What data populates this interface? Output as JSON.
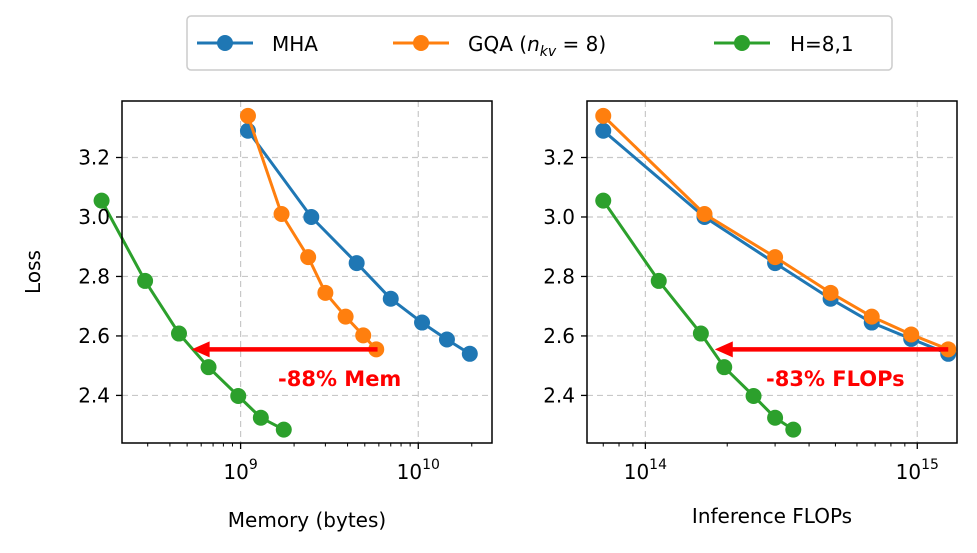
{
  "chart_data": [
    {
      "type": "line",
      "xscale": "log",
      "xlabel": "Memory (bytes)",
      "ylabel": "Loss",
      "ylim": [
        2.24,
        3.39
      ],
      "xlim": [
        215000000.0,
        26000000000.0
      ],
      "grid": true,
      "yticks": [
        "2.4",
        "2.6",
        "2.8",
        "3.0",
        "3.2"
      ],
      "xticks": [
        {
          "base": "10",
          "exp": "9"
        },
        {
          "base": "10",
          "exp": "10"
        }
      ],
      "series": [
        {
          "name": "MHA",
          "color": "#1f77b4",
          "points": [
            [
              1100000000.0,
              3.29
            ],
            [
              2500000000.0,
              3.0
            ],
            [
              4500000000.0,
              2.845
            ],
            [
              7000000000.0,
              2.725
            ],
            [
              10500000000.0,
              2.645
            ],
            [
              14500000000.0,
              2.588
            ],
            [
              19500000000.0,
              2.54
            ]
          ]
        },
        {
          "name": "GQA (n_kv = 8)",
          "color": "#ff7f0e",
          "points": [
            [
              1100000000.0,
              3.34
            ],
            [
              1700000000.0,
              3.01
            ],
            [
              2400000000.0,
              2.865
            ],
            [
              3000000000.0,
              2.745
            ],
            [
              3900000000.0,
              2.665
            ],
            [
              4900000000.0,
              2.602
            ],
            [
              5800000000.0,
              2.555
            ]
          ]
        },
        {
          "name": "H=8,1",
          "color": "#2ca02c",
          "points": [
            [
              165000000.0,
              3.055
            ],
            [
              290000000.0,
              2.785
            ],
            [
              450000000.0,
              2.608
            ],
            [
              660000000.0,
              2.495
            ],
            [
              970000000.0,
              2.398
            ],
            [
              1300000000.0,
              2.325
            ],
            [
              1750000000.0,
              2.285
            ]
          ]
        }
      ],
      "arrow": {
        "from": [
          5900000000.0,
          2.555
        ],
        "to": [
          530000000.0,
          2.555
        ],
        "color": "#ff0000"
      },
      "annotation": "-88% Mem"
    },
    {
      "type": "line",
      "xscale": "log",
      "xlabel": "Inference FLOPs",
      "ylabel": "",
      "ylim": [
        2.24,
        3.39
      ],
      "xlim": [
        61000000000000.0,
        1400000000000000.0
      ],
      "grid": true,
      "yticks": [
        "2.4",
        "2.6",
        "2.8",
        "3.0",
        "3.2"
      ],
      "xticks": [
        {
          "base": "10",
          "exp": "14"
        },
        {
          "base": "10",
          "exp": "15"
        }
      ],
      "series": [
        {
          "name": "MHA",
          "color": "#1f77b4",
          "points": [
            [
              70000000000000.0,
              3.29
            ],
            [
              165000000000000.0,
              3.0
            ],
            [
              300000000000000.0,
              2.845
            ],
            [
              480000000000000.0,
              2.725
            ],
            [
              680000000000000.0,
              2.645
            ],
            [
              950000000000000.0,
              2.59
            ],
            [
              1300000000000000.0,
              2.54
            ]
          ]
        },
        {
          "name": "GQA (n_kv = 8)",
          "color": "#ff7f0e",
          "points": [
            [
              70000000000000.0,
              3.34
            ],
            [
              165000000000000.0,
              3.01
            ],
            [
              300000000000000.0,
              2.865
            ],
            [
              480000000000000.0,
              2.745
            ],
            [
              680000000000000.0,
              2.665
            ],
            [
              950000000000000.0,
              2.605
            ],
            [
              1300000000000000.0,
              2.555
            ]
          ]
        },
        {
          "name": "H=8,1",
          "color": "#2ca02c",
          "points": [
            [
              70000000000000.0,
              3.055
            ],
            [
              112000000000000.0,
              2.785
            ],
            [
              160000000000000.0,
              2.608
            ],
            [
              195000000000000.0,
              2.495
            ],
            [
              250000000000000.0,
              2.398
            ],
            [
              300000000000000.0,
              2.325
            ],
            [
              350000000000000.0,
              2.285
            ]
          ]
        }
      ],
      "arrow": {
        "from": [
          1300000000000000.0,
          2.555
        ],
        "to": [
          180000000000000.0,
          2.555
        ],
        "color": "#ff0000"
      },
      "annotation": "-83% FLOPs"
    }
  ],
  "legend": {
    "position": "top-center",
    "entries": [
      {
        "label": "MHA",
        "color": "#1f77b4"
      },
      {
        "label_main": "GQA (",
        "label_var": "n",
        "label_sub": "kv",
        "label_rest": " = 8)",
        "color": "#ff7f0e"
      },
      {
        "label": "H=8,1",
        "color": "#2ca02c"
      }
    ]
  }
}
